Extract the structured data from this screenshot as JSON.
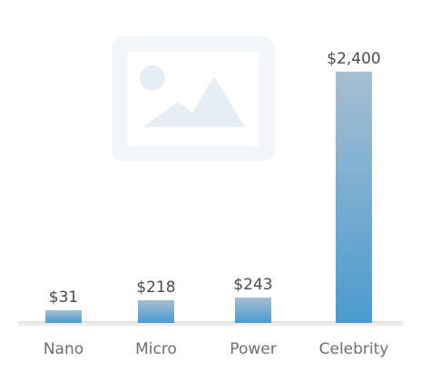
{
  "chart_data": {
    "type": "bar",
    "categories": [
      "Nano",
      "Micro",
      "Power",
      "Celebrity"
    ],
    "values": [
      31,
      218,
      243,
      2400
    ],
    "value_labels": [
      "$31",
      "$218",
      "$243",
      "$2,400"
    ],
    "title": "",
    "xlabel": "",
    "ylabel": "",
    "grid": false,
    "legend": "none",
    "colors": {
      "bar_top": "#a6bfd2",
      "bar_bottom": "#4a9bd0",
      "label_text": "#4a4a4a",
      "category_text": "#6e6e6e",
      "baseline": "#e4e4e4",
      "placeholder": "#edf3f8"
    }
  },
  "decorations": {
    "placeholder_icon": "image-placeholder-icon"
  }
}
